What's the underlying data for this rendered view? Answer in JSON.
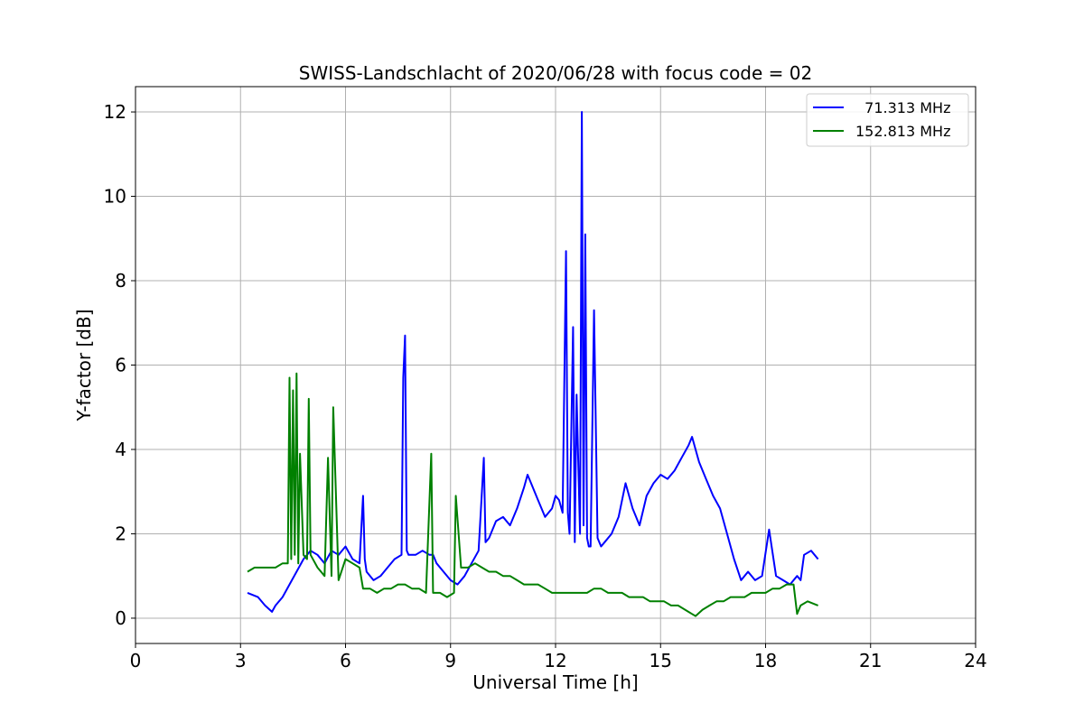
{
  "chart_data": {
    "type": "line",
    "title": "SWISS-Landschlacht of 2020/06/28 with focus code = 02",
    "xlabel": "Universal Time [h]",
    "ylabel": "Y-factor [dB]",
    "xlim": [
      0,
      24
    ],
    "ylim": [
      -0.6,
      12.6
    ],
    "xticks": [
      0,
      3,
      6,
      9,
      12,
      15,
      18,
      21,
      24
    ],
    "yticks": [
      0,
      2,
      4,
      6,
      8,
      10,
      12
    ],
    "grid": true,
    "legend_position": "top-right",
    "series": [
      {
        "name": "  71.313 MHz",
        "color": "#0000ff",
        "x": [
          3.2,
          3.5,
          3.7,
          3.9,
          4.0,
          4.2,
          4.4,
          4.6,
          4.8,
          5.0,
          5.2,
          5.4,
          5.6,
          5.8,
          6.0,
          6.2,
          6.4,
          6.5,
          6.55,
          6.6,
          6.8,
          7.0,
          7.2,
          7.4,
          7.6,
          7.65,
          7.7,
          7.75,
          7.8,
          8.0,
          8.2,
          8.4,
          8.5,
          8.6,
          8.8,
          9.0,
          9.2,
          9.4,
          9.6,
          9.8,
          9.95,
          10.0,
          10.1,
          10.3,
          10.5,
          10.7,
          10.9,
          11.1,
          11.2,
          11.3,
          11.5,
          11.7,
          11.9,
          12.0,
          12.1,
          12.2,
          12.3,
          12.35,
          12.4,
          12.5,
          12.55,
          12.6,
          12.7,
          12.75,
          12.8,
          12.85,
          12.9,
          12.95,
          13.0,
          13.1,
          13.2,
          13.3,
          13.4,
          13.6,
          13.8,
          14.0,
          14.2,
          14.4,
          14.6,
          14.8,
          15.0,
          15.2,
          15.4,
          15.6,
          15.8,
          15.9,
          16.1,
          16.3,
          16.5,
          16.7,
          16.9,
          17.1,
          17.3,
          17.5,
          17.7,
          17.9,
          18.1,
          18.3,
          18.5,
          18.7,
          18.9,
          19.0,
          19.1,
          19.3,
          19.5
        ],
        "values": [
          0.6,
          0.5,
          0.3,
          0.15,
          0.3,
          0.5,
          0.8,
          1.1,
          1.4,
          1.6,
          1.5,
          1.3,
          1.6,
          1.5,
          1.7,
          1.4,
          1.3,
          2.9,
          1.4,
          1.1,
          0.9,
          1.0,
          1.2,
          1.4,
          1.5,
          5.7,
          6.7,
          1.6,
          1.5,
          1.5,
          1.6,
          1.5,
          1.5,
          1.3,
          1.1,
          0.9,
          0.8,
          1.0,
          1.3,
          1.6,
          3.8,
          1.8,
          1.9,
          2.3,
          2.4,
          2.2,
          2.6,
          3.1,
          3.4,
          3.2,
          2.8,
          2.4,
          2.6,
          2.9,
          2.8,
          2.5,
          8.7,
          2.5,
          2.0,
          6.9,
          1.8,
          5.3,
          2.0,
          12.0,
          2.2,
          9.1,
          1.9,
          1.7,
          1.7,
          7.3,
          1.9,
          1.7,
          1.8,
          2.0,
          2.4,
          3.2,
          2.6,
          2.2,
          2.9,
          3.2,
          3.4,
          3.3,
          3.5,
          3.8,
          4.1,
          4.3,
          3.7,
          3.3,
          2.9,
          2.6,
          2.0,
          1.4,
          0.9,
          1.1,
          0.9,
          1.0,
          2.1,
          1.0,
          0.9,
          0.8,
          1.0,
          0.9,
          1.5,
          1.6,
          1.4
        ]
      },
      {
        "name": "152.813 MHz",
        "color": "#008000",
        "x": [
          3.2,
          3.4,
          3.6,
          3.8,
          4.0,
          4.2,
          4.35,
          4.4,
          4.45,
          4.5,
          4.55,
          4.6,
          4.65,
          4.7,
          4.8,
          4.9,
          4.95,
          5.0,
          5.2,
          5.4,
          5.5,
          5.6,
          5.65,
          5.8,
          6.0,
          6.2,
          6.4,
          6.5,
          6.7,
          6.9,
          7.1,
          7.3,
          7.5,
          7.7,
          7.9,
          8.1,
          8.3,
          8.45,
          8.5,
          8.7,
          8.9,
          9.1,
          9.15,
          9.3,
          9.5,
          9.7,
          9.9,
          10.1,
          10.3,
          10.5,
          10.7,
          10.9,
          11.1,
          11.3,
          11.5,
          11.7,
          11.9,
          12.1,
          12.3,
          12.5,
          12.7,
          12.9,
          13.1,
          13.3,
          13.5,
          13.7,
          13.9,
          14.1,
          14.3,
          14.5,
          14.7,
          14.9,
          15.1,
          15.3,
          15.5,
          15.7,
          15.9,
          16.0,
          16.2,
          16.4,
          16.6,
          16.8,
          17.0,
          17.2,
          17.4,
          17.6,
          17.8,
          18.0,
          18.2,
          18.4,
          18.6,
          18.8,
          18.9,
          19.0,
          19.2,
          19.5
        ],
        "values": [
          1.1,
          1.2,
          1.2,
          1.2,
          1.2,
          1.3,
          1.3,
          5.7,
          1.4,
          5.4,
          1.5,
          5.8,
          1.3,
          3.9,
          1.5,
          1.4,
          5.2,
          1.5,
          1.2,
          1.0,
          3.8,
          1.0,
          5.0,
          0.9,
          1.4,
          1.3,
          1.2,
          0.7,
          0.7,
          0.6,
          0.7,
          0.7,
          0.8,
          0.8,
          0.7,
          0.7,
          0.6,
          3.9,
          0.6,
          0.6,
          0.5,
          0.6,
          2.9,
          1.2,
          1.2,
          1.3,
          1.2,
          1.1,
          1.1,
          1.0,
          1.0,
          0.9,
          0.8,
          0.8,
          0.8,
          0.7,
          0.6,
          0.6,
          0.6,
          0.6,
          0.6,
          0.6,
          0.7,
          0.7,
          0.6,
          0.6,
          0.6,
          0.5,
          0.5,
          0.5,
          0.4,
          0.4,
          0.4,
          0.3,
          0.3,
          0.2,
          0.1,
          0.05,
          0.2,
          0.3,
          0.4,
          0.4,
          0.5,
          0.5,
          0.5,
          0.6,
          0.6,
          0.6,
          0.7,
          0.7,
          0.8,
          0.8,
          0.1,
          0.3,
          0.4,
          0.3
        ]
      }
    ]
  }
}
